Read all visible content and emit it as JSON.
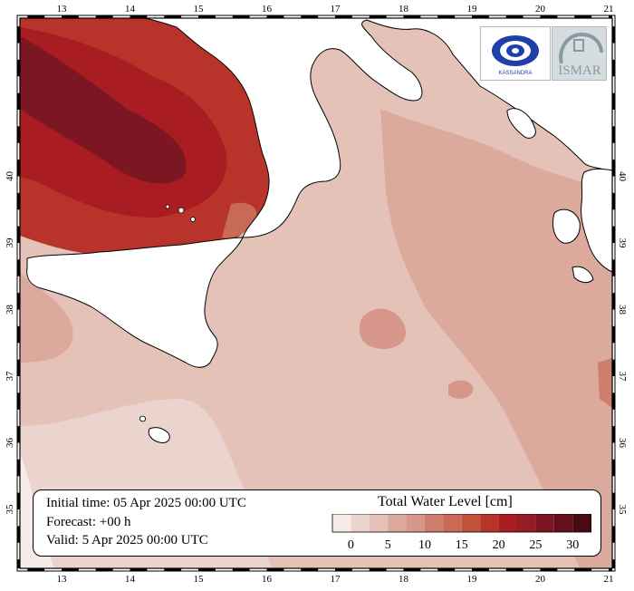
{
  "map": {
    "lon_ticks": [
      "13",
      "14",
      "15",
      "16",
      "17",
      "18",
      "19",
      "20",
      "21"
    ],
    "lat_ticks": [
      "35",
      "36",
      "37",
      "38",
      "39",
      "40"
    ]
  },
  "info": {
    "initial_time": "Initial time: 05 Apr 2025 00:00 UTC",
    "forecast": "Forecast: +00 h",
    "valid": "Valid:  5 Apr 2025 00:00 UTC"
  },
  "legend": {
    "title": "Total Water Level [cm]",
    "labels": [
      "0",
      "5",
      "10",
      "15",
      "20",
      "25",
      "30"
    ],
    "colors": [
      "#f5ebe8",
      "#ecd4ce",
      "#e4c0b6",
      "#dcaa9d",
      "#d6968a",
      "#cd7e6c",
      "#c86a56",
      "#c0523c",
      "#b8342a",
      "#a81c22",
      "#941c24",
      "#7c1622",
      "#621019",
      "#4a0a12"
    ]
  },
  "logos": {
    "left_text": "KASSANDRA",
    "right_text": "ISMAR"
  }
}
